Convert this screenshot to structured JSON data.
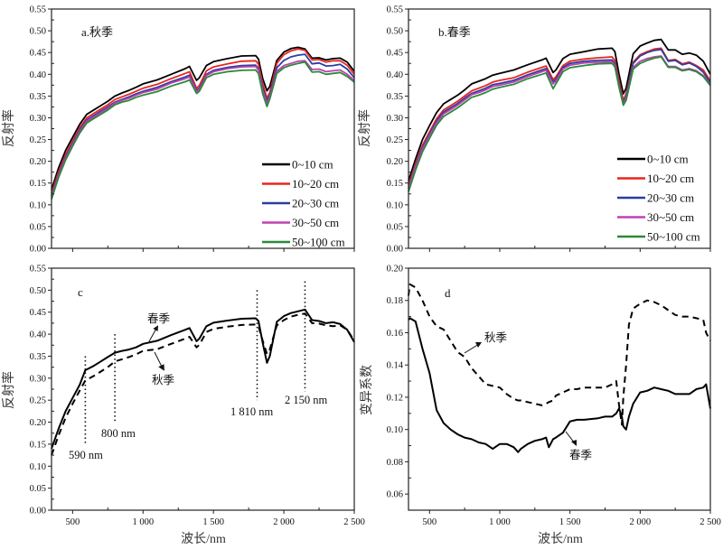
{
  "figure": {
    "panels": [
      "a",
      "b",
      "c",
      "d"
    ]
  },
  "chart_data": [
    {
      "id": "a",
      "type": "line",
      "title": "a.秋季",
      "xlabel": "",
      "ylabel": "反射率",
      "xlim": [
        350,
        2500
      ],
      "ylim": [
        0.0,
        0.55
      ],
      "xticks": [
        500,
        1000,
        1500,
        2000,
        2500
      ],
      "xtick_labels": [
        "",
        "",
        "",
        "",
        ""
      ],
      "yticks": [
        0.0,
        0.05,
        0.1,
        0.15,
        0.2,
        0.25,
        0.3,
        0.35,
        0.4,
        0.45,
        0.5,
        0.55
      ],
      "ytick_labels": [
        "0.00",
        "0.05",
        "0.10",
        "0.15",
        "0.20",
        "0.25",
        "0.30",
        "0.35",
        "0.40",
        "0.45",
        "0.50",
        "0.55"
      ],
      "legend_position": "bottom-right",
      "x": [
        350,
        400,
        450,
        500,
        550,
        600,
        650,
        700,
        750,
        800,
        850,
        900,
        950,
        1000,
        1100,
        1200,
        1300,
        1330,
        1380,
        1400,
        1450,
        1500,
        1600,
        1700,
        1800,
        1820,
        1850,
        1880,
        1900,
        1950,
        2000,
        2050,
        2100,
        2150,
        2200,
        2250,
        2300,
        2350,
        2400,
        2450,
        2500
      ],
      "series": [
        {
          "name": "0~10 cm",
          "color": "#000000",
          "values": [
            0.135,
            0.185,
            0.225,
            0.255,
            0.285,
            0.308,
            0.318,
            0.328,
            0.338,
            0.35,
            0.357,
            0.363,
            0.37,
            0.378,
            0.387,
            0.4,
            0.413,
            0.418,
            0.386,
            0.392,
            0.42,
            0.429,
            0.436,
            0.442,
            0.443,
            0.435,
            0.39,
            0.362,
            0.372,
            0.432,
            0.451,
            0.459,
            0.462,
            0.458,
            0.437,
            0.438,
            0.433,
            0.436,
            0.437,
            0.428,
            0.407
          ]
        },
        {
          "name": "10~20 cm",
          "color": "#e8261e",
          "values": [
            0.126,
            0.176,
            0.216,
            0.247,
            0.277,
            0.3,
            0.31,
            0.32,
            0.33,
            0.342,
            0.348,
            0.354,
            0.361,
            0.368,
            0.377,
            0.39,
            0.402,
            0.406,
            0.368,
            0.374,
            0.408,
            0.417,
            0.424,
            0.43,
            0.431,
            0.423,
            0.378,
            0.345,
            0.358,
            0.425,
            0.445,
            0.454,
            0.458,
            0.455,
            0.433,
            0.434,
            0.428,
            0.431,
            0.431,
            0.421,
            0.4
          ]
        },
        {
          "name": "20~30 cm",
          "color": "#2a3fa0",
          "values": [
            0.12,
            0.17,
            0.21,
            0.242,
            0.272,
            0.295,
            0.305,
            0.315,
            0.325,
            0.336,
            0.342,
            0.348,
            0.355,
            0.361,
            0.37,
            0.383,
            0.394,
            0.398,
            0.363,
            0.368,
            0.4,
            0.409,
            0.416,
            0.42,
            0.421,
            0.413,
            0.368,
            0.338,
            0.352,
            0.415,
            0.432,
            0.44,
            0.444,
            0.446,
            0.424,
            0.426,
            0.419,
            0.42,
            0.423,
            0.412,
            0.392
          ]
        },
        {
          "name": "30~50 cm",
          "color": "#c040b0",
          "values": [
            0.117,
            0.167,
            0.207,
            0.239,
            0.269,
            0.292,
            0.302,
            0.312,
            0.322,
            0.334,
            0.34,
            0.345,
            0.352,
            0.358,
            0.366,
            0.38,
            0.39,
            0.394,
            0.36,
            0.365,
            0.397,
            0.406,
            0.413,
            0.417,
            0.418,
            0.41,
            0.362,
            0.333,
            0.348,
            0.407,
            0.42,
            0.425,
            0.43,
            0.431,
            0.411,
            0.412,
            0.406,
            0.408,
            0.41,
            0.4,
            0.386
          ]
        },
        {
          "name": "50~100 cm",
          "color": "#2a8a3a",
          "values": [
            0.113,
            0.163,
            0.203,
            0.235,
            0.265,
            0.288,
            0.298,
            0.308,
            0.318,
            0.33,
            0.336,
            0.34,
            0.347,
            0.352,
            0.36,
            0.373,
            0.383,
            0.387,
            0.356,
            0.361,
            0.392,
            0.4,
            0.406,
            0.409,
            0.41,
            0.402,
            0.355,
            0.326,
            0.343,
            0.402,
            0.415,
            0.421,
            0.425,
            0.428,
            0.405,
            0.406,
            0.4,
            0.402,
            0.404,
            0.395,
            0.382
          ]
        }
      ]
    },
    {
      "id": "b",
      "type": "line",
      "title": "b.春季",
      "xlabel": "",
      "ylabel": "反射率",
      "xlim": [
        350,
        2500
      ],
      "ylim": [
        0.0,
        0.55
      ],
      "xticks": [
        500,
        1000,
        1500,
        2000,
        2500
      ],
      "xtick_labels": [
        "",
        "",
        "",
        "",
        ""
      ],
      "yticks": [
        0.0,
        0.05,
        0.1,
        0.15,
        0.2,
        0.25,
        0.3,
        0.35,
        0.4,
        0.45,
        0.5,
        0.55
      ],
      "ytick_labels": [
        "0.00",
        "0.05",
        "0.10",
        "0.15",
        "0.20",
        "0.25",
        "0.30",
        "0.35",
        "0.40",
        "0.45",
        "0.50",
        "0.55"
      ],
      "legend_position": "bottom-right",
      "x": [
        350,
        400,
        450,
        500,
        550,
        600,
        650,
        700,
        750,
        800,
        850,
        900,
        950,
        1000,
        1100,
        1200,
        1300,
        1330,
        1380,
        1400,
        1450,
        1500,
        1600,
        1700,
        1800,
        1820,
        1850,
        1880,
        1900,
        1950,
        2000,
        2050,
        2100,
        2150,
        2200,
        2250,
        2300,
        2350,
        2400,
        2450,
        2500
      ],
      "series": [
        {
          "name": "0~10 cm",
          "color": "#000000",
          "values": [
            0.155,
            0.205,
            0.25,
            0.282,
            0.312,
            0.332,
            0.342,
            0.352,
            0.364,
            0.378,
            0.384,
            0.39,
            0.398,
            0.402,
            0.41,
            0.422,
            0.433,
            0.437,
            0.404,
            0.41,
            0.436,
            0.446,
            0.452,
            0.458,
            0.46,
            0.452,
            0.4,
            0.355,
            0.368,
            0.447,
            0.465,
            0.472,
            0.478,
            0.48,
            0.456,
            0.456,
            0.446,
            0.449,
            0.444,
            0.43,
            0.4
          ]
        },
        {
          "name": "10~20 cm",
          "color": "#e8261e",
          "values": [
            0.145,
            0.195,
            0.237,
            0.268,
            0.298,
            0.318,
            0.328,
            0.338,
            0.35,
            0.362,
            0.368,
            0.374,
            0.382,
            0.386,
            0.392,
            0.405,
            0.416,
            0.419,
            0.388,
            0.394,
            0.42,
            0.43,
            0.435,
            0.438,
            0.44,
            0.432,
            0.385,
            0.34,
            0.355,
            0.428,
            0.445,
            0.452,
            0.458,
            0.46,
            0.432,
            0.434,
            0.424,
            0.428,
            0.42,
            0.41,
            0.385
          ]
        },
        {
          "name": "20~30 cm",
          "color": "#2a3fa0",
          "values": [
            0.14,
            0.19,
            0.232,
            0.263,
            0.293,
            0.313,
            0.323,
            0.333,
            0.345,
            0.356,
            0.362,
            0.368,
            0.376,
            0.379,
            0.386,
            0.399,
            0.41,
            0.413,
            0.383,
            0.389,
            0.416,
            0.425,
            0.43,
            0.432,
            0.433,
            0.425,
            0.377,
            0.333,
            0.35,
            0.425,
            0.442,
            0.45,
            0.455,
            0.457,
            0.43,
            0.432,
            0.422,
            0.426,
            0.418,
            0.405,
            0.38
          ]
        },
        {
          "name": "30~50 cm",
          "color": "#c040b0",
          "values": [
            0.137,
            0.187,
            0.228,
            0.259,
            0.289,
            0.309,
            0.319,
            0.329,
            0.341,
            0.353,
            0.358,
            0.364,
            0.372,
            0.375,
            0.382,
            0.395,
            0.406,
            0.409,
            0.378,
            0.384,
            0.412,
            0.421,
            0.426,
            0.428,
            0.429,
            0.421,
            0.372,
            0.331,
            0.345,
            0.416,
            0.43,
            0.436,
            0.44,
            0.442,
            0.418,
            0.418,
            0.41,
            0.413,
            0.408,
            0.397,
            0.376
          ]
        },
        {
          "name": "50~100 cm",
          "color": "#2a8a3a",
          "values": [
            0.13,
            0.18,
            0.222,
            0.253,
            0.283,
            0.303,
            0.313,
            0.323,
            0.335,
            0.347,
            0.352,
            0.358,
            0.366,
            0.37,
            0.377,
            0.39,
            0.4,
            0.403,
            0.367,
            0.378,
            0.406,
            0.415,
            0.42,
            0.424,
            0.425,
            0.417,
            0.37,
            0.329,
            0.34,
            0.412,
            0.425,
            0.432,
            0.437,
            0.44,
            0.416,
            0.416,
            0.408,
            0.411,
            0.406,
            0.395,
            0.374
          ]
        }
      ]
    },
    {
      "id": "c",
      "type": "line",
      "title": "c",
      "xlabel": "波长/nm",
      "ylabel": "反射率",
      "xlim": [
        350,
        2500
      ],
      "ylim": [
        0.0,
        0.55
      ],
      "xticks": [
        500,
        1000,
        1500,
        2000,
        2500
      ],
      "xtick_labels": [
        "500",
        "1 000",
        "1 500",
        "2 000",
        "2 500"
      ],
      "yticks": [
        0.0,
        0.05,
        0.1,
        0.15,
        0.2,
        0.25,
        0.3,
        0.35,
        0.4,
        0.45,
        0.5,
        0.55
      ],
      "ytick_labels": [
        "0.00",
        "0.05",
        "0.10",
        "0.15",
        "0.20",
        "0.25",
        "0.30",
        "0.35",
        "0.40",
        "0.45",
        "0.50",
        "0.55"
      ],
      "x": [
        350,
        400,
        450,
        500,
        550,
        590,
        650,
        700,
        750,
        800,
        850,
        900,
        950,
        1000,
        1100,
        1200,
        1300,
        1330,
        1380,
        1400,
        1450,
        1500,
        1600,
        1700,
        1800,
        1820,
        1850,
        1880,
        1900,
        1950,
        2000,
        2050,
        2100,
        2150,
        2200,
        2250,
        2300,
        2350,
        2400,
        2450,
        2500
      ],
      "series": [
        {
          "name": "春季",
          "style": "solid",
          "color": "#000000",
          "values": [
            0.14,
            0.185,
            0.225,
            0.255,
            0.285,
            0.318,
            0.328,
            0.338,
            0.348,
            0.358,
            0.362,
            0.365,
            0.37,
            0.378,
            0.385,
            0.398,
            0.41,
            0.414,
            0.384,
            0.39,
            0.418,
            0.426,
            0.431,
            0.435,
            0.436,
            0.43,
            0.38,
            0.335,
            0.35,
            0.428,
            0.441,
            0.448,
            0.452,
            0.456,
            0.432,
            0.43,
            0.425,
            0.427,
            0.423,
            0.41,
            0.382
          ]
        },
        {
          "name": "秋季",
          "style": "dashed",
          "color": "#000000",
          "values": [
            0.125,
            0.17,
            0.21,
            0.242,
            0.272,
            0.295,
            0.305,
            0.315,
            0.325,
            0.338,
            0.343,
            0.348,
            0.354,
            0.362,
            0.366,
            0.378,
            0.39,
            0.394,
            0.37,
            0.376,
            0.405,
            0.412,
            0.417,
            0.421,
            0.422,
            0.418,
            0.385,
            0.355,
            0.365,
            0.42,
            0.432,
            0.44,
            0.444,
            0.447,
            0.425,
            0.424,
            0.42,
            0.418,
            0.42,
            0.41,
            0.385
          ]
        }
      ],
      "annotations": [
        {
          "text": "590 nm",
          "x": 590
        },
        {
          "text": "800 nm",
          "x": 800
        },
        {
          "text": "1 810 nm",
          "x": 1810
        },
        {
          "text": "2 150 nm",
          "x": 2150
        },
        {
          "text": "春季",
          "target": "春季"
        },
        {
          "text": "秋季",
          "target": "秋季"
        }
      ]
    },
    {
      "id": "d",
      "type": "line",
      "title": "d",
      "xlabel": "波长/nm",
      "ylabel": "变异系数",
      "xlim": [
        350,
        2500
      ],
      "ylim": [
        0.05,
        0.2
      ],
      "xticks": [
        500,
        1000,
        1500,
        2000,
        2500
      ],
      "xtick_labels": [
        "500",
        "1 000",
        "1 500",
        "2 000",
        "2 500"
      ],
      "yticks": [
        0.06,
        0.08,
        0.1,
        0.12,
        0.14,
        0.16,
        0.18,
        0.2
      ],
      "ytick_labels": [
        "0.06",
        "0.08",
        "0.10",
        "0.12",
        "0.14",
        "0.16",
        "0.18",
        "0.20"
      ],
      "x": [
        350,
        360,
        400,
        450,
        500,
        550,
        600,
        650,
        700,
        750,
        800,
        850,
        900,
        950,
        1000,
        1050,
        1100,
        1130,
        1150,
        1200,
        1250,
        1300,
        1330,
        1350,
        1380,
        1400,
        1450,
        1500,
        1550,
        1600,
        1700,
        1750,
        1800,
        1830,
        1850,
        1870,
        1880,
        1900,
        1920,
        1950,
        2000,
        2050,
        2100,
        2150,
        2200,
        2250,
        2300,
        2350,
        2400,
        2450,
        2470,
        2500
      ],
      "series": [
        {
          "name": "春季",
          "style": "solid",
          "color": "#000000",
          "values": [
            0.168,
            0.169,
            0.167,
            0.15,
            0.135,
            0.112,
            0.104,
            0.1,
            0.097,
            0.095,
            0.094,
            0.092,
            0.091,
            0.088,
            0.091,
            0.091,
            0.089,
            0.086,
            0.088,
            0.091,
            0.093,
            0.094,
            0.095,
            0.089,
            0.094,
            0.095,
            0.098,
            0.105,
            0.106,
            0.106,
            0.107,
            0.108,
            0.108,
            0.11,
            0.113,
            0.108,
            0.102,
            0.1,
            0.108,
            0.116,
            0.123,
            0.124,
            0.126,
            0.125,
            0.124,
            0.122,
            0.122,
            0.122,
            0.125,
            0.126,
            0.128,
            0.113
          ]
        },
        {
          "name": "秋季",
          "style": "dashed",
          "color": "#000000",
          "values": [
            0.183,
            0.19,
            0.188,
            0.18,
            0.17,
            0.164,
            0.162,
            0.155,
            0.148,
            0.145,
            0.138,
            0.133,
            0.128,
            0.127,
            0.126,
            0.122,
            0.119,
            0.118,
            0.118,
            0.117,
            0.116,
            0.115,
            0.116,
            0.117,
            0.118,
            0.121,
            0.123,
            0.125,
            0.125,
            0.126,
            0.126,
            0.126,
            0.128,
            0.13,
            0.115,
            0.103,
            0.12,
            0.14,
            0.165,
            0.175,
            0.178,
            0.18,
            0.179,
            0.177,
            0.174,
            0.171,
            0.17,
            0.17,
            0.169,
            0.168,
            0.16,
            0.155
          ]
        }
      ],
      "annotations": [
        {
          "text": "秋季",
          "target": "秋季"
        },
        {
          "text": "春季",
          "target": "春季"
        }
      ]
    }
  ]
}
